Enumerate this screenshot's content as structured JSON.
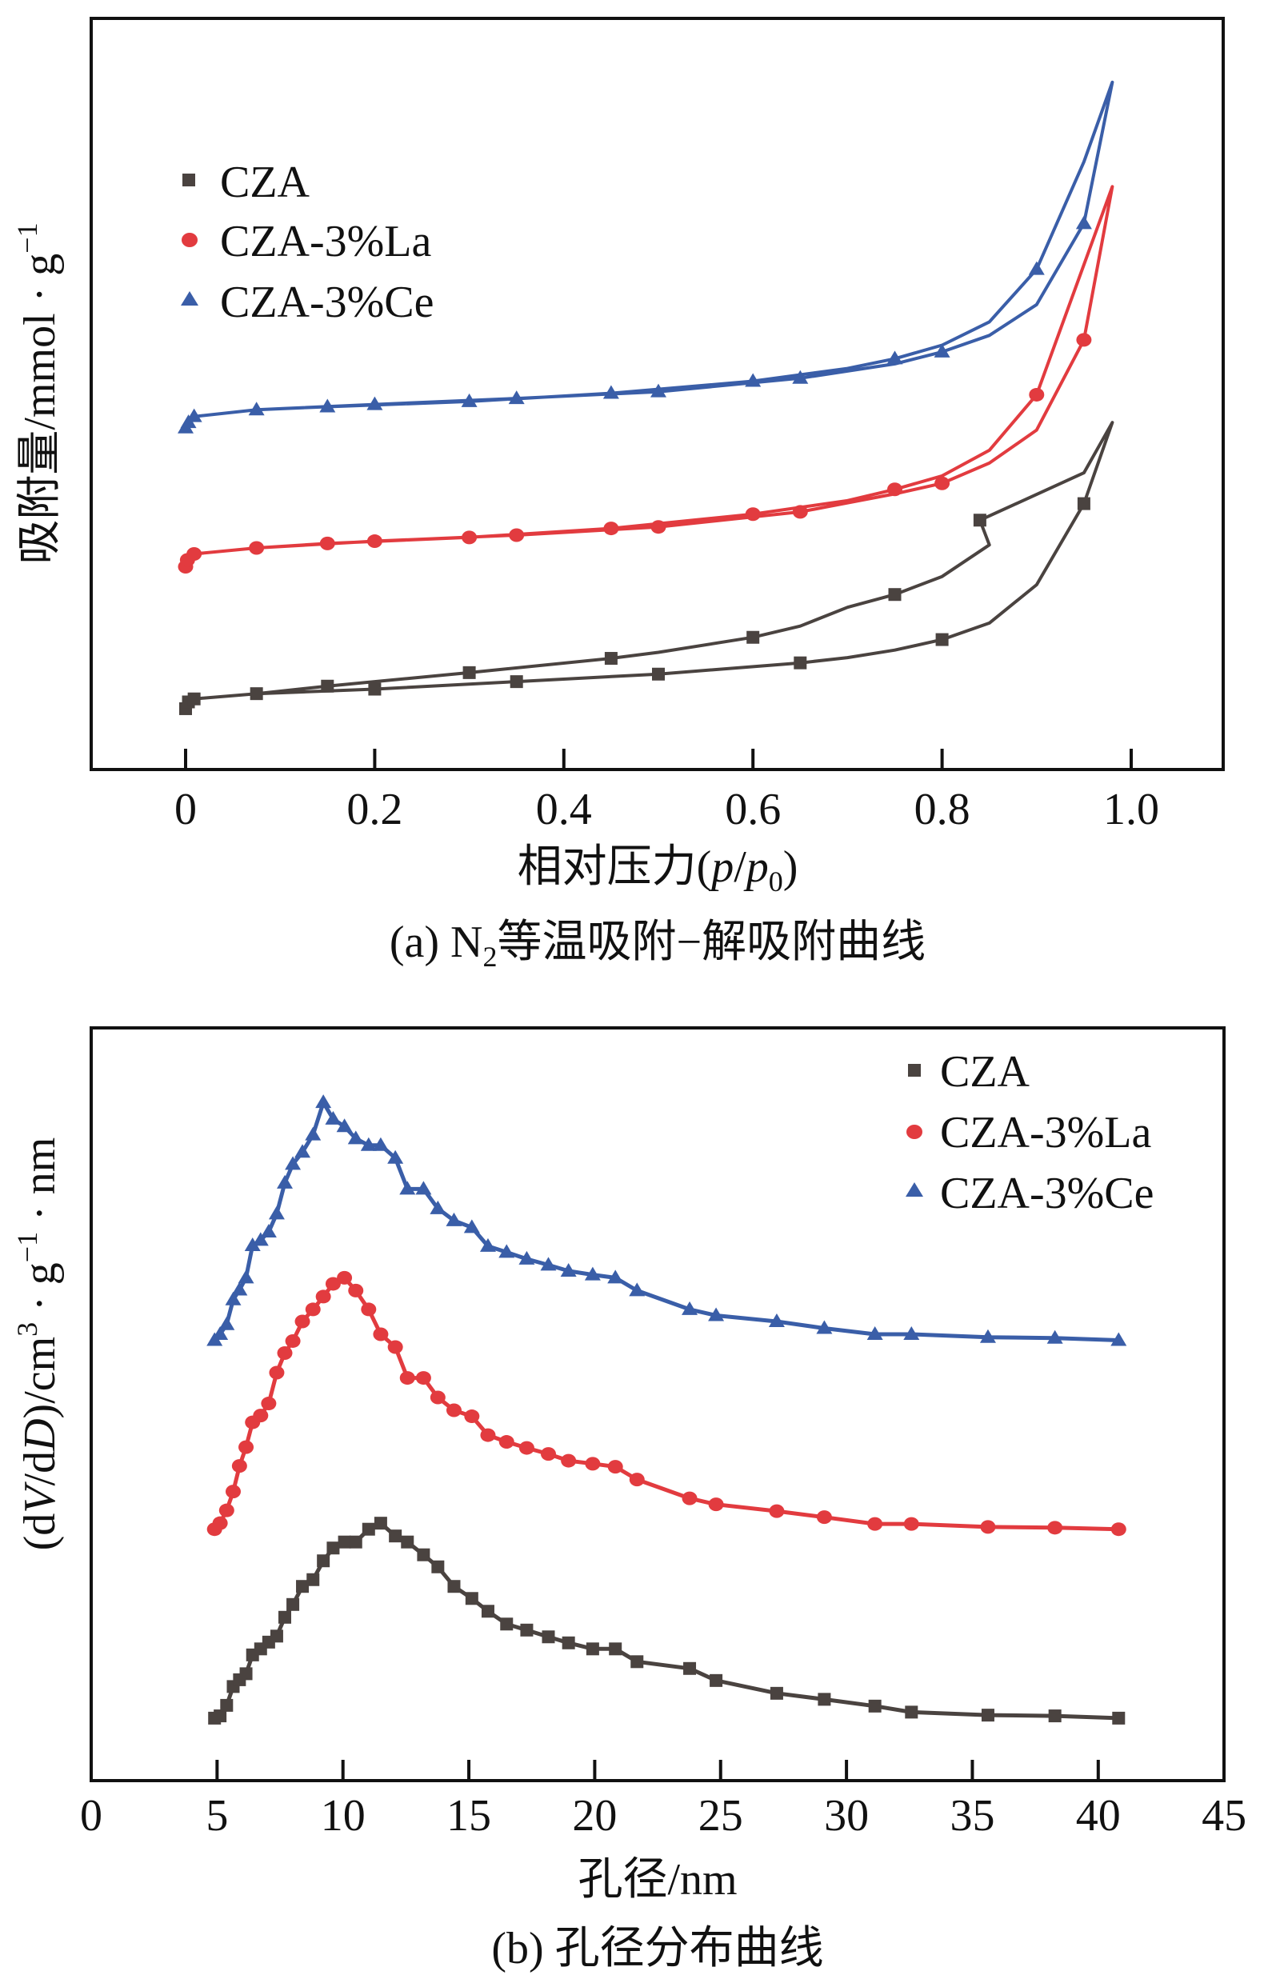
{
  "chart_data": [
    {
      "id": "a",
      "type": "line",
      "title": "",
      "caption_prefix": "(a) N",
      "caption_sub": "2",
      "caption_suffix": "等温吸附−解吸附曲线",
      "xlabel_prefix": "相对压力(",
      "xlabel_p": "p",
      "xlabel_slash": "/",
      "xlabel_p0": "p",
      "xlabel_p0_sub": "0",
      "xlabel_suffix": ")",
      "ylabel": "吸附量/mmol · g",
      "ylabel_sup": "−1",
      "xlim": [
        -0.1,
        1.1
      ],
      "ylim": [
        0,
        100
      ],
      "y_units_note": "arbitrary (no y tick labels shown)",
      "xticks": [
        0,
        0.2,
        0.4,
        0.6,
        0.8,
        1.0
      ],
      "xtick_labels": [
        "0",
        "0.2",
        "0.4",
        "0.6",
        "0.8",
        "1.0"
      ],
      "grid": false,
      "legend_position": "top-left",
      "series": [
        {
          "name": "CZA",
          "color": "#4a4340",
          "marker": "square",
          "path": [
            [
              0,
              8.1
            ],
            [
              0.003,
              9.0
            ],
            [
              0.009,
              9.4
            ],
            [
              0.075,
              10.1
            ],
            [
              0.2,
              10.7
            ],
            [
              0.35,
              11.7
            ],
            [
              0.5,
              12.7
            ],
            [
              0.65,
              14.2
            ],
            [
              0.7,
              14.9
            ],
            [
              0.75,
              15.9
            ],
            [
              0.8,
              17.3
            ],
            [
              0.85,
              19.5
            ],
            [
              0.9,
              24.6
            ],
            [
              0.95,
              35.4
            ],
            [
              0.98,
              46.2
            ],
            [
              0.95,
              39.5
            ],
            [
              0.84,
              33.2
            ],
            [
              0.85,
              29.9
            ],
            [
              0.8,
              25.7
            ],
            [
              0.75,
              23.3
            ],
            [
              0.7,
              21.6
            ],
            [
              0.65,
              19.1
            ],
            [
              0.6,
              17.6
            ],
            [
              0.5,
              15.6
            ],
            [
              0.45,
              14.8
            ],
            [
              0.3,
              12.9
            ],
            [
              0.15,
              11.1
            ],
            [
              0.075,
              10.1
            ]
          ],
          "markers": [
            [
              0,
              8.1
            ],
            [
              0.003,
              9.0
            ],
            [
              0.009,
              9.4
            ],
            [
              0.075,
              10.1
            ],
            [
              0.2,
              10.7
            ],
            [
              0.35,
              11.7
            ],
            [
              0.5,
              12.7
            ],
            [
              0.65,
              14.2
            ],
            [
              0.8,
              17.3
            ],
            [
              0.95,
              35.4
            ],
            [
              0.84,
              33.2
            ],
            [
              0.75,
              23.3
            ],
            [
              0.6,
              17.6
            ],
            [
              0.45,
              14.8
            ],
            [
              0.3,
              12.9
            ],
            [
              0.15,
              11.1
            ]
          ]
        },
        {
          "name": "CZA-3%La",
          "color": "#e23b3f",
          "marker": "circle",
          "path": [
            [
              0,
              27.0
            ],
            [
              0.002,
              27.9
            ],
            [
              0.009,
              28.7
            ],
            [
              0.075,
              29.5
            ],
            [
              0.2,
              30.4
            ],
            [
              0.35,
              31.2
            ],
            [
              0.5,
              32.3
            ],
            [
              0.65,
              34.3
            ],
            [
              0.75,
              36.7
            ],
            [
              0.8,
              38.1
            ],
            [
              0.85,
              40.8
            ],
            [
              0.9,
              45.2
            ],
            [
              0.95,
              57.2
            ],
            [
              0.98,
              77.6
            ],
            [
              0.9,
              49.9
            ],
            [
              0.85,
              42.5
            ],
            [
              0.8,
              39.1
            ],
            [
              0.75,
              37.3
            ],
            [
              0.7,
              35.8
            ],
            [
              0.6,
              34.0
            ],
            [
              0.45,
              32.1
            ],
            [
              0.3,
              30.9
            ],
            [
              0.15,
              30.1
            ],
            [
              0.075,
              29.5
            ]
          ],
          "markers": [
            [
              0,
              27.0
            ],
            [
              0.002,
              27.9
            ],
            [
              0.009,
              28.7
            ],
            [
              0.075,
              29.5
            ],
            [
              0.2,
              30.4
            ],
            [
              0.35,
              31.2
            ],
            [
              0.5,
              32.3
            ],
            [
              0.65,
              34.3
            ],
            [
              0.8,
              38.1
            ],
            [
              0.95,
              57.2
            ],
            [
              0.9,
              49.9
            ],
            [
              0.75,
              37.3
            ],
            [
              0.6,
              34.0
            ],
            [
              0.45,
              32.1
            ],
            [
              0.3,
              30.9
            ],
            [
              0.15,
              30.1
            ]
          ]
        },
        {
          "name": "CZA-3%Ce",
          "color": "#3a5ea8",
          "marker": "triangle",
          "path": [
            [
              0,
              45.5
            ],
            [
              0.003,
              46.2
            ],
            [
              0.009,
              47.0
            ],
            [
              0.075,
              47.9
            ],
            [
              0.2,
              48.6
            ],
            [
              0.35,
              49.4
            ],
            [
              0.5,
              50.3
            ],
            [
              0.65,
              52.1
            ],
            [
              0.75,
              54.0
            ],
            [
              0.8,
              55.6
            ],
            [
              0.85,
              57.8
            ],
            [
              0.9,
              61.9
            ],
            [
              0.95,
              72.7
            ],
            [
              0.98,
              91.5
            ],
            [
              0.95,
              80.9
            ],
            [
              0.9,
              66.6
            ],
            [
              0.85,
              59.6
            ],
            [
              0.8,
              56.5
            ],
            [
              0.75,
              54.7
            ],
            [
              0.7,
              53.4
            ],
            [
              0.6,
              51.7
            ],
            [
              0.45,
              50.1
            ],
            [
              0.3,
              49.0
            ],
            [
              0.15,
              48.3
            ],
            [
              0.075,
              47.9
            ]
          ],
          "markers": [
            [
              0,
              45.5
            ],
            [
              0.003,
              46.2
            ],
            [
              0.009,
              47.0
            ],
            [
              0.075,
              47.9
            ],
            [
              0.2,
              48.6
            ],
            [
              0.35,
              49.4
            ],
            [
              0.5,
              50.3
            ],
            [
              0.65,
              52.1
            ],
            [
              0.8,
              55.6
            ],
            [
              0.95,
              72.7
            ],
            [
              0.9,
              66.6
            ],
            [
              0.75,
              54.7
            ],
            [
              0.6,
              51.7
            ],
            [
              0.45,
              50.1
            ],
            [
              0.3,
              49.0
            ],
            [
              0.15,
              48.3
            ]
          ]
        }
      ]
    },
    {
      "id": "b",
      "type": "line",
      "title": "",
      "caption": "(b) 孔径分布曲线",
      "xlabel": "孔径/nm",
      "ylabel_prefix": "(d",
      "ylabel_V": "V",
      "ylabel_mid": "/d",
      "ylabel_D": "D",
      "ylabel_suffix": ")/cm",
      "ylabel_sup3": "3",
      "ylabel_g": " · g",
      "ylabel_sup1": "−1",
      "ylabel_nm": " · nm",
      "xlim": [
        0,
        45
      ],
      "ylim": [
        0,
        100
      ],
      "y_units_note": "arbitrary (no y tick labels shown)",
      "xticks": [
        0,
        5,
        10,
        15,
        20,
        25,
        30,
        35,
        40,
        45
      ],
      "xtick_labels": [
        "0",
        "5",
        "10",
        "15",
        "20",
        "25",
        "30",
        "35",
        "40",
        "45"
      ],
      "grid": false,
      "legend_position": "top-right",
      "x": [
        4.9,
        5.12,
        5.38,
        5.64,
        5.89,
        6.15,
        6.41,
        6.73,
        7.05,
        7.37,
        7.69,
        8.01,
        8.39,
        8.81,
        9.22,
        9.61,
        10.06,
        10.51,
        11.02,
        11.5,
        12.08,
        12.56,
        13.2,
        13.77,
        14.41,
        15.12,
        15.76,
        16.5,
        17.3,
        18.16,
        18.96,
        19.92,
        20.82,
        21.68,
        23.77,
        24.82,
        27.23,
        29.12,
        31.13,
        32.58,
        35.62,
        38.28,
        40.81
      ],
      "series": [
        {
          "name": "CZA",
          "color": "#4a4340",
          "marker": "square",
          "values": [
            8.3,
            8.6,
            10.0,
            12.5,
            13.4,
            14.2,
            16.7,
            17.5,
            18.4,
            19.2,
            21.7,
            23.4,
            25.8,
            26.7,
            29.2,
            30.9,
            31.7,
            31.7,
            33.4,
            34.2,
            32.5,
            31.7,
            30.0,
            28.4,
            25.8,
            24.2,
            22.5,
            20.8,
            20.0,
            19.1,
            18.3,
            17.5,
            17.5,
            15.8,
            14.9,
            13.3,
            11.6,
            10.8,
            9.9,
            9.1,
            8.7,
            8.6,
            8.3
          ]
        },
        {
          "name": "CZA-3%La",
          "color": "#e23b3f",
          "marker": "circle",
          "values": [
            33.4,
            34.2,
            35.9,
            38.4,
            41.8,
            44.3,
            47.6,
            48.5,
            50.1,
            54.2,
            56.8,
            58.4,
            61.0,
            62.6,
            64.3,
            66.0,
            66.8,
            65.1,
            62.6,
            59.3,
            57.6,
            53.5,
            53.5,
            50.9,
            49.2,
            48.4,
            45.9,
            45.0,
            44.2,
            43.4,
            42.5,
            42.1,
            41.7,
            40.0,
            37.5,
            36.7,
            35.8,
            35.0,
            34.1,
            34.1,
            33.7,
            33.6,
            33.4
          ]
        },
        {
          "name": "CZA-3%Ce",
          "color": "#3a5ea8",
          "marker": "triangle",
          "values": [
            58.5,
            59.3,
            60.6,
            63.9,
            65.2,
            66.8,
            71.1,
            71.8,
            72.9,
            75.3,
            79.4,
            81.9,
            83.5,
            85.8,
            90.1,
            87.9,
            86.9,
            85.3,
            84.4,
            84.4,
            82.7,
            78.6,
            78.6,
            76.0,
            74.4,
            73.5,
            71.0,
            70.2,
            69.3,
            68.5,
            67.7,
            67.2,
            66.8,
            65.1,
            62.6,
            61.8,
            61.0,
            60.1,
            59.3,
            59.3,
            58.9,
            58.8,
            58.5
          ]
        }
      ]
    }
  ]
}
